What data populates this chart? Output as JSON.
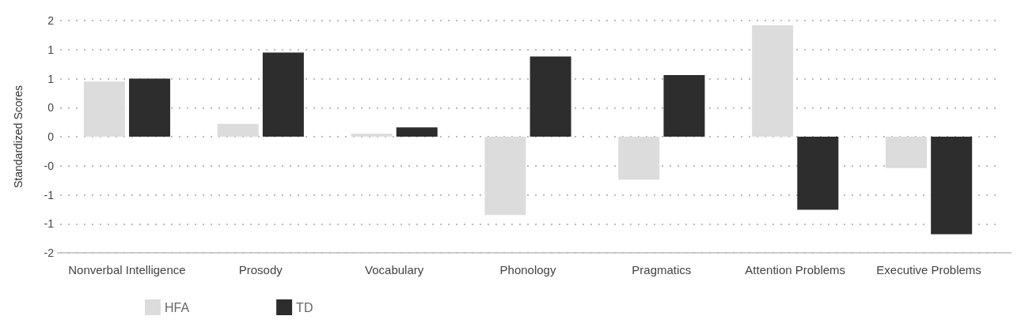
{
  "chart_data": {
    "type": "bar",
    "ylabel": "Standardized Scores",
    "categories": [
      "Nonverbal Intelligence",
      "Prosody",
      "Vocabulary",
      "Phonology",
      "Pragmatics",
      "Attention Problems",
      "Executive Problems"
    ],
    "series": [
      {
        "name": "HFA",
        "color": "#dcdcdc",
        "values": [
          0.95,
          0.22,
          0.05,
          -1.35,
          -0.74,
          1.92,
          -0.54
        ]
      },
      {
        "name": "TD",
        "color": "#2d2d2d",
        "values": [
          1.0,
          1.45,
          0.16,
          1.38,
          1.06,
          -1.26,
          -1.68
        ]
      }
    ],
    "ylim": [
      -2,
      2
    ],
    "yticks": [
      -2,
      {
        "value": -1.5,
        "label": "-1"
      },
      -1,
      {
        "value": -0.5,
        "label": "-0"
      },
      0,
      {
        "value": 0.5,
        "label": "0"
      },
      1,
      {
        "value": 1.5,
        "label": "1"
      },
      2
    ],
    "grid": "y",
    "legend": "bottom left"
  }
}
